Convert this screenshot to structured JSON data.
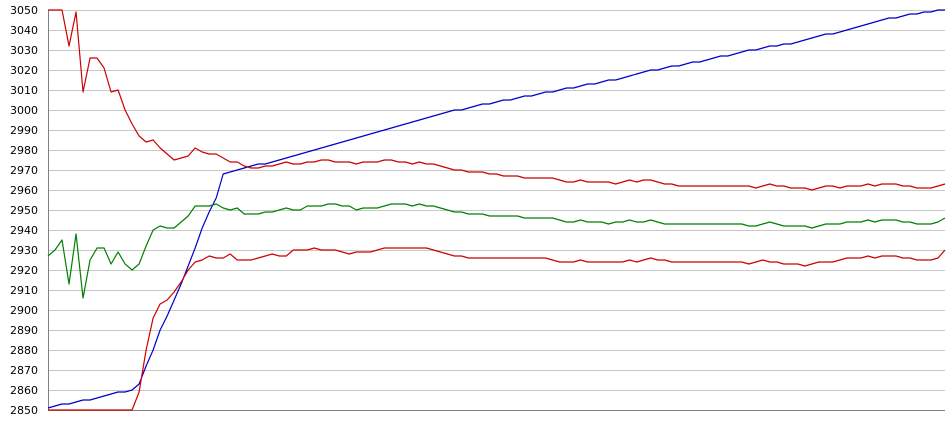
{
  "chart_data": {
    "type": "line",
    "title": "",
    "xlabel": "",
    "ylabel": "",
    "ylim": [
      2850,
      3050
    ],
    "yticks": [
      3050,
      3040,
      3030,
      3020,
      3010,
      3000,
      2990,
      2980,
      2970,
      2960,
      2950,
      2940,
      2930,
      2920,
      2910,
      2900,
      2890,
      2880,
      2870,
      2860,
      2850
    ],
    "grid": true,
    "legend": "none",
    "x": [
      0,
      1,
      2,
      3,
      4,
      5,
      6,
      7,
      8,
      9,
      10,
      11,
      12,
      13,
      14,
      15,
      16,
      17,
      18,
      19,
      20,
      21,
      22,
      23,
      24,
      25,
      26,
      27,
      28,
      29,
      30,
      31,
      32,
      33,
      34,
      35,
      36,
      37,
      38,
      39,
      40,
      41,
      42,
      43,
      44,
      45,
      46,
      47,
      48,
      49,
      50,
      51,
      52,
      53,
      54,
      55,
      56,
      57,
      58,
      59,
      60,
      61,
      62,
      63,
      64,
      65,
      66,
      67,
      68,
      69,
      70,
      71,
      72,
      73,
      74,
      75,
      76,
      77,
      78,
      79,
      80,
      81,
      82,
      83,
      84,
      85,
      86,
      87,
      88,
      89,
      90,
      91,
      92,
      93,
      94,
      95,
      96,
      97,
      98,
      99,
      100,
      101,
      102,
      103,
      104,
      105,
      106,
      107,
      108,
      109,
      110,
      111,
      112,
      113,
      114,
      115,
      116,
      117,
      118,
      119,
      120,
      121,
      122,
      123,
      124,
      125,
      126,
      127,
      128
    ],
    "series": [
      {
        "color": "#0000cc",
        "values": [
          2851,
          2852,
          2853,
          2853,
          2854,
          2855,
          2855,
          2856,
          2857,
          2858,
          2859,
          2859,
          2860,
          2863,
          2872,
          2880,
          2890,
          2897,
          2905,
          2913,
          2922,
          2931,
          2941,
          2949,
          2956,
          2968,
          2969,
          2970,
          2971,
          2972,
          2973,
          2973,
          2974,
          2975,
          2976,
          2977,
          2978,
          2979,
          2980,
          2981,
          2982,
          2983,
          2984,
          2985,
          2986,
          2987,
          2988,
          2989,
          2990,
          2991,
          2992,
          2993,
          2994,
          2995,
          2996,
          2997,
          2998,
          2999,
          3000,
          3000,
          3001,
          3002,
          3003,
          3003,
          3004,
          3005,
          3005,
          3006,
          3007,
          3007,
          3008,
          3009,
          3009,
          3010,
          3011,
          3011,
          3012,
          3013,
          3013,
          3014,
          3015,
          3015,
          3016,
          3017,
          3018,
          3019,
          3020,
          3020,
          3021,
          3022,
          3022,
          3023,
          3024,
          3024,
          3025,
          3026,
          3027,
          3027,
          3028,
          3029,
          3030,
          3030,
          3031,
          3032,
          3032,
          3033,
          3033,
          3034,
          3035,
          3036,
          3037,
          3038,
          3038,
          3039,
          3040,
          3041,
          3042,
          3043,
          3044,
          3045,
          3046,
          3046,
          3047,
          3048,
          3048,
          3049,
          3049,
          3050,
          3050
        ]
      },
      {
        "color": "#cc0000",
        "values": [
          3050,
          3050,
          3050,
          3032,
          3049,
          3009,
          3026,
          3026,
          3021,
          3009,
          3010,
          3000,
          2993,
          2987,
          2984,
          2985,
          2981,
          2978,
          2975,
          2976,
          2977,
          2981,
          2979,
          2978,
          2978,
          2976,
          2974,
          2974,
          2972,
          2971,
          2971,
          2972,
          2972,
          2973,
          2974,
          2973,
          2973,
          2974,
          2974,
          2975,
          2975,
          2974,
          2974,
          2974,
          2973,
          2974,
          2974,
          2974,
          2975,
          2975,
          2974,
          2974,
          2973,
          2974,
          2973,
          2973,
          2972,
          2971,
          2970,
          2970,
          2969,
          2969,
          2969,
          2968,
          2968,
          2967,
          2967,
          2967,
          2966,
          2966,
          2966,
          2966,
          2966,
          2965,
          2964,
          2964,
          2965,
          2964,
          2964,
          2964,
          2964,
          2963,
          2964,
          2965,
          2964,
          2965,
          2965,
          2964,
          2963,
          2963,
          2962,
          2962,
          2962,
          2962,
          2962,
          2962,
          2962,
          2962,
          2962,
          2962,
          2962,
          2961,
          2962,
          2963,
          2962,
          2962,
          2961,
          2961,
          2961,
          2960,
          2961,
          2962,
          2962,
          2961,
          2962,
          2962,
          2962,
          2963,
          2962,
          2963,
          2963,
          2963,
          2962,
          2962,
          2961,
          2961,
          2961,
          2962,
          2963
        ]
      },
      {
        "color": "#008000",
        "values": [
          2927,
          2930,
          2935,
          2913,
          2938,
          2906,
          2925,
          2931,
          2931,
          2923,
          2929,
          2923,
          2920,
          2923,
          2932,
          2940,
          2942,
          2941,
          2941,
          2944,
          2947,
          2952,
          2952,
          2952,
          2953,
          2951,
          2950,
          2951,
          2948,
          2948,
          2948,
          2949,
          2949,
          2950,
          2951,
          2950,
          2950,
          2952,
          2952,
          2952,
          2953,
          2953,
          2952,
          2952,
          2950,
          2951,
          2951,
          2951,
          2952,
          2953,
          2953,
          2953,
          2952,
          2953,
          2952,
          2952,
          2951,
          2950,
          2949,
          2949,
          2948,
          2948,
          2948,
          2947,
          2947,
          2947,
          2947,
          2947,
          2946,
          2946,
          2946,
          2946,
          2946,
          2945,
          2944,
          2944,
          2945,
          2944,
          2944,
          2944,
          2943,
          2944,
          2944,
          2945,
          2944,
          2944,
          2945,
          2944,
          2943,
          2943,
          2943,
          2943,
          2943,
          2943,
          2943,
          2943,
          2943,
          2943,
          2943,
          2943,
          2942,
          2942,
          2943,
          2944,
          2943,
          2942,
          2942,
          2942,
          2942,
          2941,
          2942,
          2943,
          2943,
          2943,
          2944,
          2944,
          2944,
          2945,
          2944,
          2945,
          2945,
          2945,
          2944,
          2944,
          2943,
          2943,
          2943,
          2944,
          2946
        ]
      },
      {
        "color": "#cc0000",
        "values": [
          2850,
          2850,
          2850,
          2850,
          2850,
          2850,
          2850,
          2850,
          2850,
          2850,
          2850,
          2850,
          2850,
          2859,
          2880,
          2896,
          2903,
          2905,
          2909,
          2914,
          2920,
          2924,
          2925,
          2927,
          2926,
          2926,
          2928,
          2925,
          2925,
          2925,
          2926,
          2927,
          2928,
          2927,
          2927,
          2930,
          2930,
          2930,
          2931,
          2930,
          2930,
          2930,
          2929,
          2928,
          2929,
          2929,
          2929,
          2930,
          2931,
          2931,
          2931,
          2931,
          2931,
          2931,
          2931,
          2930,
          2929,
          2928,
          2927,
          2927,
          2926,
          2926,
          2926,
          2926,
          2926,
          2926,
          2926,
          2926,
          2926,
          2926,
          2926,
          2926,
          2925,
          2924,
          2924,
          2924,
          2925,
          2924,
          2924,
          2924,
          2924,
          2924,
          2924,
          2925,
          2924,
          2925,
          2926,
          2925,
          2925,
          2924,
          2924,
          2924,
          2924,
          2924,
          2924,
          2924,
          2924,
          2924,
          2924,
          2924,
          2923,
          2924,
          2925,
          2924,
          2924,
          2923,
          2923,
          2923,
          2922,
          2923,
          2924,
          2924,
          2924,
          2925,
          2926,
          2926,
          2926,
          2927,
          2926,
          2927,
          2927,
          2927,
          2926,
          2926,
          2925,
          2925,
          2925,
          2926,
          2930
        ]
      }
    ]
  }
}
